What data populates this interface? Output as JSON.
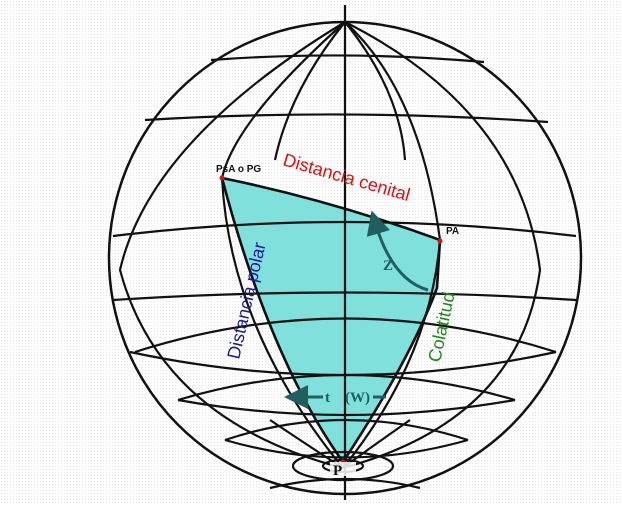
{
  "labels": {
    "polar_distance": "Distancia polar",
    "zenith_distance": "Distancia cenital",
    "colatitude": "Colatitud",
    "star_point": "PsA o PG",
    "zenith_point": "PA",
    "pole": "P",
    "angle_z": "Z",
    "hour_angle": "t",
    "hour_angle_note": "(W)"
  },
  "colors": {
    "triangle_fill": "#80e0dc",
    "polar_distance": "#1a1aa0",
    "zenith_distance": "#e01010",
    "colatitude": "#1e8a1e",
    "arrow": "#1f5f5f",
    "point_marker": "#e01010"
  }
}
